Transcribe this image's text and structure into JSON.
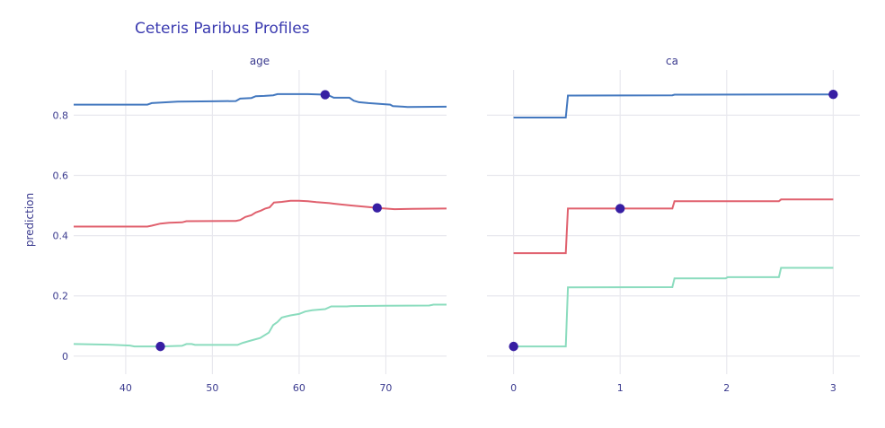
{
  "chart_data": {
    "type": "line",
    "title": "Ceteris Paribus Profiles",
    "ylabel": "prediction",
    "ylim": [
      -0.06,
      0.95
    ],
    "yticks": [
      0,
      0.2,
      0.4,
      0.6,
      0.8
    ],
    "ytick_labels": [
      "0",
      "0.2",
      "0.4",
      "0.6",
      "0.8"
    ],
    "grid": true,
    "point_color": "#371ea3",
    "series_colors": [
      "#4378bf",
      "#e0616e",
      "#8bdcbe"
    ],
    "panels": [
      {
        "subtitle": "age",
        "xlim": [
          34,
          77
        ],
        "xticks": [
          40,
          50,
          60,
          70
        ],
        "xtick_labels": [
          "40",
          "50",
          "60",
          "70"
        ],
        "series": [
          {
            "values": [
              [
                34,
                0.835
              ],
              [
                38,
                0.835
              ],
              [
                42.5,
                0.835
              ],
              [
                43,
                0.84
              ],
              [
                46,
                0.845
              ],
              [
                50,
                0.846
              ],
              [
                52.7,
                0.847
              ],
              [
                53.2,
                0.855
              ],
              [
                54.5,
                0.857
              ],
              [
                55,
                0.863
              ],
              [
                56,
                0.864
              ],
              [
                57,
                0.866
              ],
              [
                57.5,
                0.87
              ],
              [
                61,
                0.87
              ],
              [
                63,
                0.868
              ],
              [
                63.4,
                0.866
              ],
              [
                64,
                0.858
              ],
              [
                65.8,
                0.858
              ],
              [
                66.3,
                0.848
              ],
              [
                66.9,
                0.843
              ],
              [
                68,
                0.84
              ],
              [
                70.5,
                0.835
              ],
              [
                70.8,
                0.83
              ],
              [
                72,
                0.828
              ],
              [
                72.5,
                0.827
              ],
              [
                77,
                0.828
              ]
            ],
            "observation": [
              63,
              0.868
            ]
          },
          {
            "values": [
              [
                34,
                0.43
              ],
              [
                42.5,
                0.43
              ],
              [
                43,
                0.433
              ],
              [
                44,
                0.44
              ],
              [
                45,
                0.443
              ],
              [
                46.5,
                0.444
              ],
              [
                47,
                0.448
              ],
              [
                52.7,
                0.449
              ],
              [
                53.2,
                0.452
              ],
              [
                53.8,
                0.462
              ],
              [
                54.5,
                0.468
              ],
              [
                55,
                0.477
              ],
              [
                55.6,
                0.483
              ],
              [
                56.1,
                0.49
              ],
              [
                56.6,
                0.494
              ],
              [
                57.1,
                0.51
              ],
              [
                58,
                0.512
              ],
              [
                59,
                0.516
              ],
              [
                60,
                0.516
              ],
              [
                61,
                0.514
              ],
              [
                62,
                0.511
              ],
              [
                63.5,
                0.508
              ],
              [
                64,
                0.506
              ],
              [
                66,
                0.5
              ],
              [
                68,
                0.495
              ],
              [
                69,
                0.492
              ],
              [
                71,
                0.488
              ],
              [
                73,
                0.489
              ],
              [
                77,
                0.49
              ]
            ],
            "observation": [
              69,
              0.492
            ]
          },
          {
            "values": [
              [
                34,
                0.04
              ],
              [
                38,
                0.038
              ],
              [
                40.5,
                0.035
              ],
              [
                41,
                0.032
              ],
              [
                44,
                0.032
              ],
              [
                46.5,
                0.034
              ],
              [
                47,
                0.04
              ],
              [
                47.6,
                0.04
              ],
              [
                48,
                0.037
              ],
              [
                52.9,
                0.037
              ],
              [
                53.5,
                0.044
              ],
              [
                54.5,
                0.052
              ],
              [
                55.5,
                0.06
              ],
              [
                56.5,
                0.078
              ],
              [
                57,
                0.103
              ],
              [
                57.5,
                0.113
              ],
              [
                58,
                0.128
              ],
              [
                58.5,
                0.132
              ],
              [
                59,
                0.135
              ],
              [
                60,
                0.14
              ],
              [
                60.7,
                0.148
              ],
              [
                61.5,
                0.152
              ],
              [
                63,
                0.156
              ],
              [
                63.7,
                0.165
              ],
              [
                65.5,
                0.165
              ],
              [
                66,
                0.166
              ],
              [
                70,
                0.167
              ],
              [
                75,
                0.168
              ],
              [
                75.5,
                0.171
              ],
              [
                77,
                0.171
              ]
            ],
            "observation": [
              44,
              0.032
            ]
          }
        ]
      },
      {
        "subtitle": "ca",
        "xlim": [
          -0.25,
          3.25
        ],
        "xticks": [
          0,
          1,
          2,
          3
        ],
        "xtick_labels": [
          "0",
          "1",
          "2",
          "3"
        ],
        "series": [
          {
            "values": [
              [
                0,
                0.792
              ],
              [
                0.49,
                0.792
              ],
              [
                0.51,
                0.865
              ],
              [
                1.49,
                0.866
              ],
              [
                1.51,
                0.868
              ],
              [
                3,
                0.869
              ]
            ],
            "observation": [
              3,
              0.869
            ]
          },
          {
            "values": [
              [
                0,
                0.342
              ],
              [
                0.49,
                0.342
              ],
              [
                0.51,
                0.49
              ],
              [
                1.49,
                0.49
              ],
              [
                1.51,
                0.514
              ],
              [
                2.49,
                0.514
              ],
              [
                2.51,
                0.52
              ],
              [
                3,
                0.52
              ]
            ],
            "observation": [
              1,
              0.49
            ]
          },
          {
            "values": [
              [
                0,
                0.032
              ],
              [
                0.49,
                0.032
              ],
              [
                0.51,
                0.228
              ],
              [
                1.49,
                0.229
              ],
              [
                1.51,
                0.258
              ],
              [
                1.99,
                0.258
              ],
              [
                2.01,
                0.262
              ],
              [
                2.49,
                0.262
              ],
              [
                2.51,
                0.293
              ],
              [
                3,
                0.293
              ]
            ],
            "observation": [
              0,
              0.032
            ]
          }
        ]
      }
    ]
  }
}
